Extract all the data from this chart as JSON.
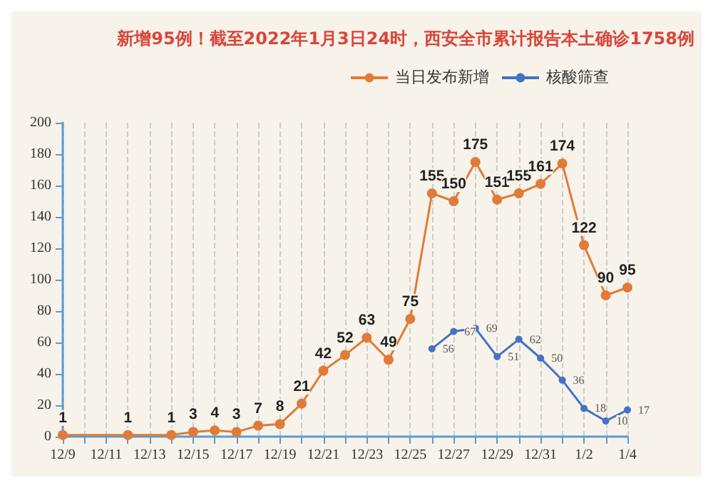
{
  "chart_data": {
    "type": "line",
    "title": "新增95例！截至2022年1月3日24时，西安全市累计报告本土确诊1758例",
    "categories": [
      "12/9",
      null,
      "12/11",
      null,
      "12/13",
      null,
      "12/15",
      null,
      "12/17",
      null,
      "12/19",
      null,
      "12/21",
      null,
      "12/23",
      null,
      "12/25",
      null,
      "12/27",
      null,
      "12/29",
      null,
      "12/31",
      null,
      "1/2",
      null,
      "1/4"
    ],
    "series": [
      {
        "name": "当日发布新增",
        "color": "#e07b39",
        "values": [
          1,
          null,
          null,
          1,
          null,
          1,
          3,
          4,
          3,
          7,
          8,
          21,
          42,
          52,
          63,
          49,
          75,
          155,
          150,
          175,
          151,
          155,
          161,
          174,
          122,
          90,
          95
        ]
      },
      {
        "name": "核酸筛查",
        "color": "#4472c4",
        "values": [
          null,
          null,
          null,
          null,
          null,
          null,
          null,
          null,
          null,
          null,
          null,
          null,
          null,
          null,
          null,
          null,
          null,
          56,
          67,
          69,
          51,
          62,
          50,
          36,
          18,
          10,
          17
        ]
      }
    ],
    "ylim": [
      0,
      200
    ],
    "yticks": [
      0,
      20,
      40,
      60,
      80,
      100,
      120,
      140,
      160,
      180,
      200
    ],
    "grid": "x",
    "legend": "top right",
    "marker": "circle",
    "line_style": "solid",
    "data_labels": true
  }
}
